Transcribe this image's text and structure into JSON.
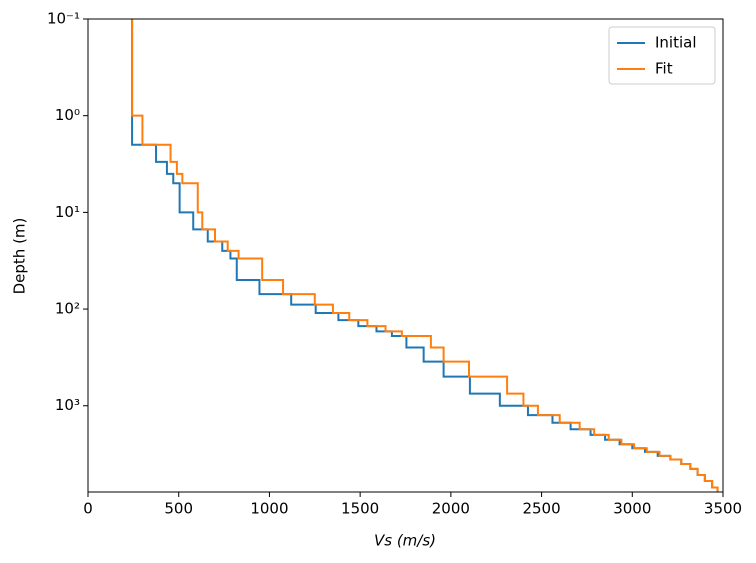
{
  "chart_data": {
    "type": "line",
    "xlabel": "Vs (m/s)",
    "ylabel": "Depth (m)",
    "xlim": [
      0,
      3500
    ],
    "xticks": [
      0,
      500,
      1000,
      1500,
      2000,
      2500,
      3000,
      3500
    ],
    "ylim": [
      0.1,
      7800
    ],
    "yscale": "log",
    "yinverted": true,
    "yticks": [
      {
        "value": 0.1,
        "label": "10⁻¹"
      },
      {
        "value": 1,
        "label": "10⁰"
      },
      {
        "value": 10,
        "label": "10¹"
      },
      {
        "value": 100,
        "label": "10²"
      },
      {
        "value": 1000,
        "label": "10³"
      }
    ],
    "legend": "upper right",
    "series": [
      {
        "name": "Initial",
        "color": "#1f77b4",
        "x": [
          243,
          243,
          375,
          375,
          435,
          435,
          470,
          470,
          505,
          505,
          580,
          580,
          660,
          660,
          740,
          740,
          785,
          785,
          820,
          820,
          945,
          945,
          1120,
          1120,
          1255,
          1255,
          1380,
          1380,
          1490,
          1490,
          1590,
          1590,
          1675,
          1675,
          1755,
          1755,
          1850,
          1850,
          1960,
          1960,
          2105,
          2105,
          2270,
          2270,
          2425,
          2425,
          2560,
          2560,
          2660,
          2660,
          2770,
          2770,
          2850,
          2850,
          2930,
          2930,
          3000,
          3000,
          3070,
          3070,
          3140,
          3140,
          3210,
          3210,
          3270,
          3270,
          3320,
          3320,
          3360,
          3360,
          3400,
          3400,
          3440,
          3440,
          3470,
          3470
        ],
        "values": [
          0.1,
          2,
          2,
          3,
          3,
          4,
          4,
          5,
          5,
          10,
          10,
          15,
          15,
          20,
          20,
          25,
          25,
          30,
          30,
          50,
          50,
          70,
          70,
          90,
          90,
          110,
          110,
          130,
          130,
          150,
          150,
          170,
          170,
          190,
          190,
          250,
          250,
          350,
          350,
          500,
          500,
          750,
          750,
          1000,
          1000,
          1250,
          1250,
          1500,
          1500,
          1750,
          1750,
          2000,
          2000,
          2250,
          2250,
          2500,
          2500,
          2750,
          2750,
          3000,
          3000,
          3300,
          3300,
          3600,
          3600,
          4000,
          4000,
          4500,
          4500,
          5200,
          5200,
          6000,
          6000,
          7000,
          7000,
          7800
        ]
      },
      {
        "name": "Fit",
        "color": "#ff7f0e",
        "x": [
          243,
          243,
          300,
          300,
          455,
          455,
          490,
          490,
          520,
          520,
          605,
          605,
          630,
          630,
          700,
          700,
          770,
          770,
          830,
          830,
          960,
          960,
          1075,
          1075,
          1250,
          1250,
          1350,
          1350,
          1440,
          1440,
          1540,
          1540,
          1640,
          1640,
          1730,
          1730,
          1890,
          1890,
          1960,
          1960,
          2100,
          2100,
          2310,
          2310,
          2400,
          2400,
          2480,
          2480,
          2600,
          2600,
          2710,
          2710,
          2790,
          2790,
          2870,
          2870,
          2940,
          2940,
          3010,
          3010,
          3080,
          3080,
          3150,
          3150,
          3210,
          3210,
          3270,
          3270,
          3320,
          3320,
          3360,
          3360,
          3400,
          3400,
          3440,
          3440,
          3470,
          3470
        ],
        "values": [
          0.1,
          1,
          1,
          2,
          2,
          3,
          3,
          4,
          4,
          5,
          5,
          10,
          10,
          15,
          15,
          20,
          20,
          25,
          25,
          30,
          30,
          50,
          50,
          70,
          70,
          90,
          90,
          110,
          110,
          130,
          130,
          150,
          150,
          170,
          170,
          190,
          190,
          250,
          250,
          350,
          350,
          500,
          500,
          750,
          750,
          1000,
          1000,
          1250,
          1250,
          1500,
          1500,
          1750,
          1750,
          2000,
          2000,
          2250,
          2250,
          2500,
          2500,
          2750,
          2750,
          3000,
          3000,
          3300,
          3300,
          3600,
          3600,
          4000,
          4000,
          4500,
          4500,
          5200,
          5200,
          6000,
          6000,
          7000,
          7000,
          7800
        ]
      }
    ]
  }
}
